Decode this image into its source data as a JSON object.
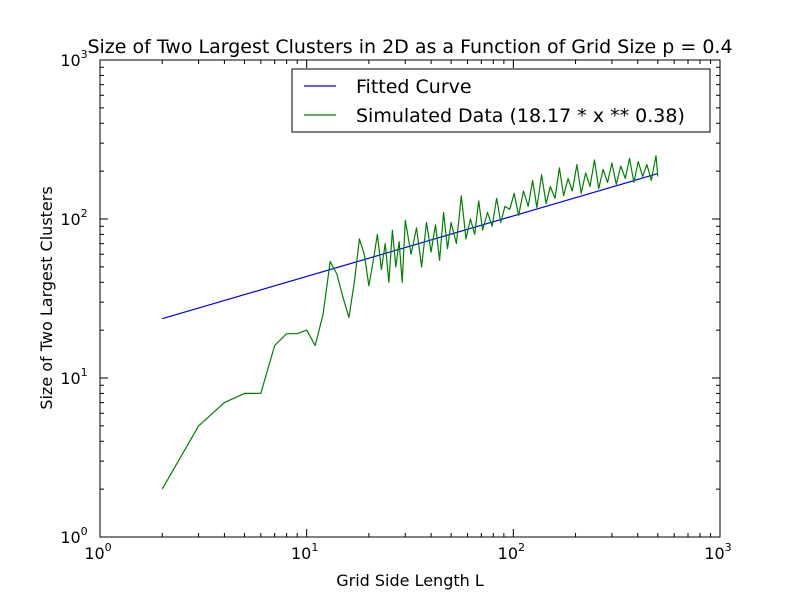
{
  "chart_data": {
    "type": "line",
    "title": "Size of Two Largest Clusters in 2D as a Function of Grid Size p = 0.4",
    "xlabel": "Grid Side Length L",
    "ylabel": "Size of Two Largest Clusters",
    "xscale": "log",
    "yscale": "log",
    "xlim": [
      1,
      1000
    ],
    "ylim": [
      1,
      1000
    ],
    "x_ticks": [
      {
        "value": 1,
        "base": "10",
        "exp": "0"
      },
      {
        "value": 10,
        "base": "10",
        "exp": "1"
      },
      {
        "value": 100,
        "base": "10",
        "exp": "2"
      },
      {
        "value": 1000,
        "base": "10",
        "exp": "3"
      }
    ],
    "y_ticks": [
      {
        "value": 1,
        "base": "10",
        "exp": "0"
      },
      {
        "value": 10,
        "base": "10",
        "exp": "1"
      },
      {
        "value": 100,
        "base": "10",
        "exp": "2"
      },
      {
        "value": 1000,
        "base": "10",
        "exp": "3"
      }
    ],
    "grid": false,
    "legend_position": "top-right",
    "series": [
      {
        "name": "Fitted Curve",
        "color": "#0000ff",
        "x": [
          2,
          500
        ],
        "y": [
          23.6,
          193
        ]
      },
      {
        "name": "Simulated Data (18.17 * x ** 0.38)",
        "color": "#008000",
        "x": [
          2,
          3,
          4,
          5,
          6,
          7,
          8,
          9,
          10,
          11,
          12,
          13,
          14,
          15,
          16,
          17,
          18,
          19,
          20,
          21,
          22,
          23,
          24,
          25,
          26,
          27,
          28,
          29,
          30,
          32,
          34,
          36,
          38,
          40,
          42,
          44,
          46,
          48,
          50,
          53,
          56,
          59,
          62,
          65,
          68,
          71,
          75,
          79,
          83,
          87,
          91,
          96,
          101,
          106,
          112,
          118,
          124,
          130,
          137,
          144,
          151,
          159,
          167,
          175,
          184,
          193,
          203,
          213,
          224,
          235,
          247,
          259,
          272,
          286,
          300,
          315,
          331,
          348,
          365,
          383,
          402,
          422,
          443,
          465,
          490,
          500
        ],
        "y": [
          2,
          5,
          7,
          8,
          8,
          16,
          19,
          19,
          20,
          16,
          25,
          54,
          45,
          32,
          24,
          40,
          75,
          60,
          38,
          55,
          80,
          48,
          70,
          40,
          85,
          50,
          72,
          40,
          98,
          60,
          88,
          50,
          95,
          62,
          92,
          55,
          110,
          65,
          95,
          70,
          140,
          75,
          100,
          80,
          130,
          85,
          110,
          90,
          135,
          95,
          120,
          115,
          145,
          105,
          150,
          120,
          175,
          118,
          190,
          125,
          160,
          135,
          210,
          140,
          180,
          150,
          220,
          145,
          195,
          160,
          235,
          155,
          205,
          170,
          225,
          165,
          215,
          180,
          240,
          170,
          230,
          185,
          220,
          175,
          250,
          185
        ]
      }
    ]
  }
}
